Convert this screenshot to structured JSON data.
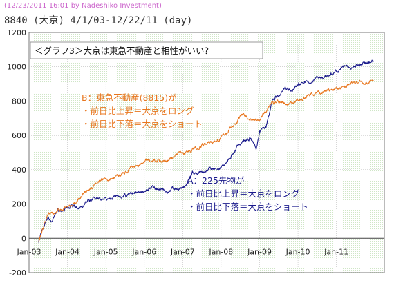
{
  "header": {
    "meta": "(12/23/2011 16:01 by Nadeshiko Investment)",
    "title": "8840 (大京) 4/1/03-12/22/11 (day)"
  },
  "chart_data": {
    "type": "line",
    "title": "＜グラフ3＞大京は東急不動産と相性がいい？",
    "xlabel": "",
    "ylabel": "",
    "ylim": [
      -200,
      1200
    ],
    "xlim": [
      "2003-01-01",
      "2012-04-01"
    ],
    "yticks": [
      -200,
      0,
      200,
      400,
      600,
      800,
      1000,
      1200
    ],
    "xticks": [
      "Jan-03",
      "Jan-04",
      "Jan-05",
      "Jan-06",
      "Jan-07",
      "Jan-08",
      "Jan-09",
      "Jan-10",
      "Jan-11"
    ],
    "grid": true,
    "colors": {
      "A": "#1a1a8c",
      "B": "#e8761e"
    },
    "annotations": {
      "B": [
        "B：東急不動産(8815)が",
        "・前日比上昇＝大京をロング",
        "・前日比下落＝大京をショート"
      ],
      "A": [
        "A：225先物が",
        "・前日比上昇＝大京をロング",
        "・前日比下落＝大京をショート"
      ]
    },
    "series": [
      {
        "key": "A",
        "x": [
          "2003-04-01",
          "2003-05-01",
          "2003-06-01",
          "2003-07-01",
          "2003-08-01",
          "2003-10-01",
          "2003-12-01",
          "2004-02-01",
          "2004-04-01",
          "2004-06-01",
          "2004-08-01",
          "2004-10-01",
          "2004-12-01",
          "2005-02-01",
          "2005-04-01",
          "2005-06-01",
          "2005-08-01",
          "2005-10-01",
          "2005-12-01",
          "2006-02-01",
          "2006-04-01",
          "2006-06-01",
          "2006-08-01",
          "2006-10-01",
          "2006-12-01",
          "2007-02-01",
          "2007-04-01",
          "2007-06-01",
          "2007-08-01",
          "2007-10-01",
          "2007-12-01",
          "2008-02-01",
          "2008-04-01",
          "2008-06-01",
          "2008-08-01",
          "2008-10-01",
          "2008-12-01",
          "2009-01-01",
          "2009-03-01",
          "2009-05-01",
          "2009-07-01",
          "2009-09-01",
          "2009-11-01",
          "2010-01-01",
          "2010-03-01",
          "2010-05-01",
          "2010-07-01",
          "2010-09-01",
          "2010-11-01",
          "2011-01-01",
          "2011-03-01",
          "2011-05-01",
          "2011-07-01",
          "2011-09-01",
          "2011-11-01",
          "2011-12-22"
        ],
        "y": [
          -20,
          40,
          80,
          110,
          100,
          160,
          170,
          190,
          180,
          200,
          220,
          230,
          230,
          230,
          250,
          240,
          250,
          270,
          270,
          290,
          300,
          280,
          270,
          280,
          290,
          300,
          380,
          380,
          390,
          410,
          400,
          430,
          470,
          530,
          570,
          590,
          520,
          620,
          640,
          800,
          830,
          880,
          860,
          900,
          920,
          900,
          940,
          940,
          950,
          970,
          1000,
          1000,
          1010,
          1020,
          1030,
          1030
        ]
      },
      {
        "key": "B",
        "x": [
          "2003-04-01",
          "2003-05-01",
          "2003-06-01",
          "2003-07-01",
          "2003-08-01",
          "2003-10-01",
          "2003-12-01",
          "2004-02-01",
          "2004-04-01",
          "2004-06-01",
          "2004-08-01",
          "2004-10-01",
          "2004-12-01",
          "2005-02-01",
          "2005-04-01",
          "2005-06-01",
          "2005-08-01",
          "2005-10-01",
          "2005-12-01",
          "2006-02-01",
          "2006-04-01",
          "2006-06-01",
          "2006-08-01",
          "2006-10-01",
          "2006-12-01",
          "2007-02-01",
          "2007-04-01",
          "2007-06-01",
          "2007-08-01",
          "2007-10-01",
          "2007-12-01",
          "2008-02-01",
          "2008-04-01",
          "2008-06-01",
          "2008-08-01",
          "2008-10-01",
          "2008-12-01",
          "2009-01-01",
          "2009-03-01",
          "2009-05-01",
          "2009-07-01",
          "2009-09-01",
          "2009-11-01",
          "2010-01-01",
          "2010-03-01",
          "2010-05-01",
          "2010-07-01",
          "2010-09-01",
          "2010-11-01",
          "2011-01-01",
          "2011-03-01",
          "2011-05-01",
          "2011-07-01",
          "2011-09-01",
          "2011-11-01",
          "2011-12-22"
        ],
        "y": [
          -10,
          30,
          90,
          130,
          140,
          160,
          170,
          190,
          220,
          260,
          290,
          320,
          340,
          350,
          360,
          380,
          400,
          420,
          430,
          450,
          450,
          450,
          450,
          470,
          490,
          500,
          520,
          530,
          550,
          560,
          580,
          600,
          650,
          680,
          720,
          700,
          680,
          690,
          740,
          780,
          790,
          780,
          790,
          800,
          820,
          830,
          840,
          850,
          860,
          870,
          880,
          890,
          900,
          905,
          910,
          915
        ]
      }
    ]
  }
}
